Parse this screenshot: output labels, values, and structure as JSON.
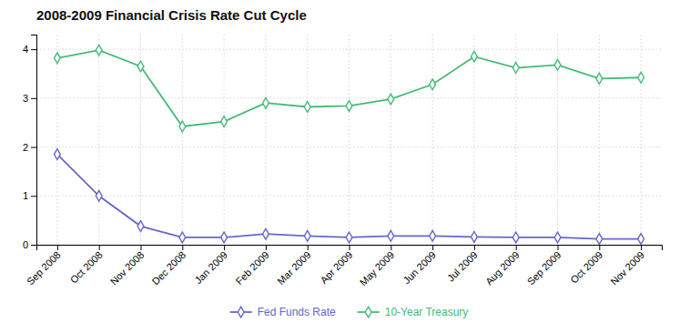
{
  "chart_data": {
    "type": "line",
    "title": "2008-2009 Financial Crisis Rate Cut Cycle",
    "categories": [
      "Sep 2008",
      "Oct 2008",
      "Nov 2008",
      "Dec 2008",
      "Jan 2009",
      "Feb 2009",
      "Mar 2009",
      "Apr 2009",
      "May 2009",
      "Jun 2009",
      "Jul 2009",
      "Aug 2009",
      "Sep 2009",
      "Oct 2009",
      "Nov 2009"
    ],
    "series": [
      {
        "name": "Fed Funds Rate",
        "color": "#6666cc",
        "marker": "diamond",
        "values": [
          1.85,
          1.0,
          0.38,
          0.15,
          0.15,
          0.22,
          0.18,
          0.15,
          0.18,
          0.18,
          0.16,
          0.15,
          0.15,
          0.12,
          0.12
        ]
      },
      {
        "name": "10-Year Treasury",
        "color": "#44bb77",
        "marker": "diamond",
        "values": [
          3.82,
          3.98,
          3.65,
          2.42,
          2.52,
          2.9,
          2.82,
          2.84,
          2.98,
          3.28,
          3.85,
          3.62,
          3.68,
          3.4,
          3.42
        ]
      }
    ],
    "ylim": [
      0,
      4.3
    ],
    "yticks": [
      0,
      1,
      2,
      3,
      4
    ],
    "grid": true,
    "legend": "bottom"
  }
}
